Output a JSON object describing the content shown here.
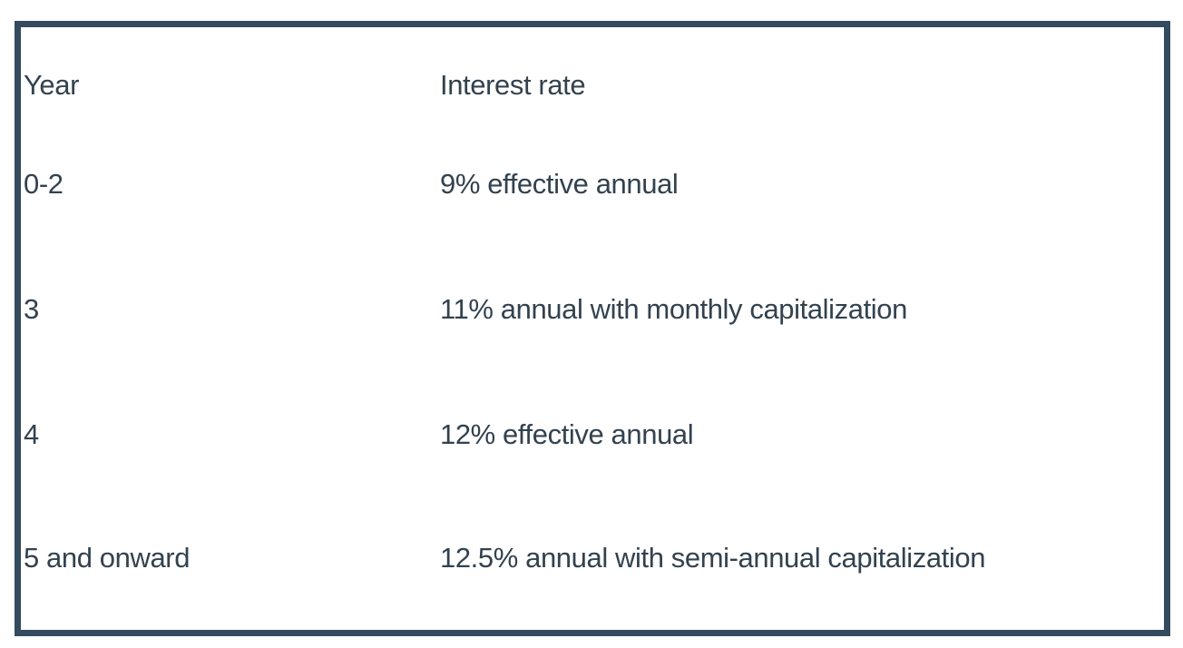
{
  "table": {
    "columns": [
      {
        "label": "Year"
      },
      {
        "label": "Interest rate"
      }
    ],
    "rows": [
      {
        "year": "0-2",
        "rate": "9% effective annual"
      },
      {
        "year": "3",
        "rate": "11% annual with monthly capitalization"
      },
      {
        "year": "4",
        "rate": "12% effective annual"
      },
      {
        "year": "5 and onward",
        "rate": "12.5% annual with semi-annual capitalization"
      }
    ],
    "colors": {
      "border": "#344A5E",
      "text": "#33424F",
      "background": "#FFFFFF"
    }
  }
}
